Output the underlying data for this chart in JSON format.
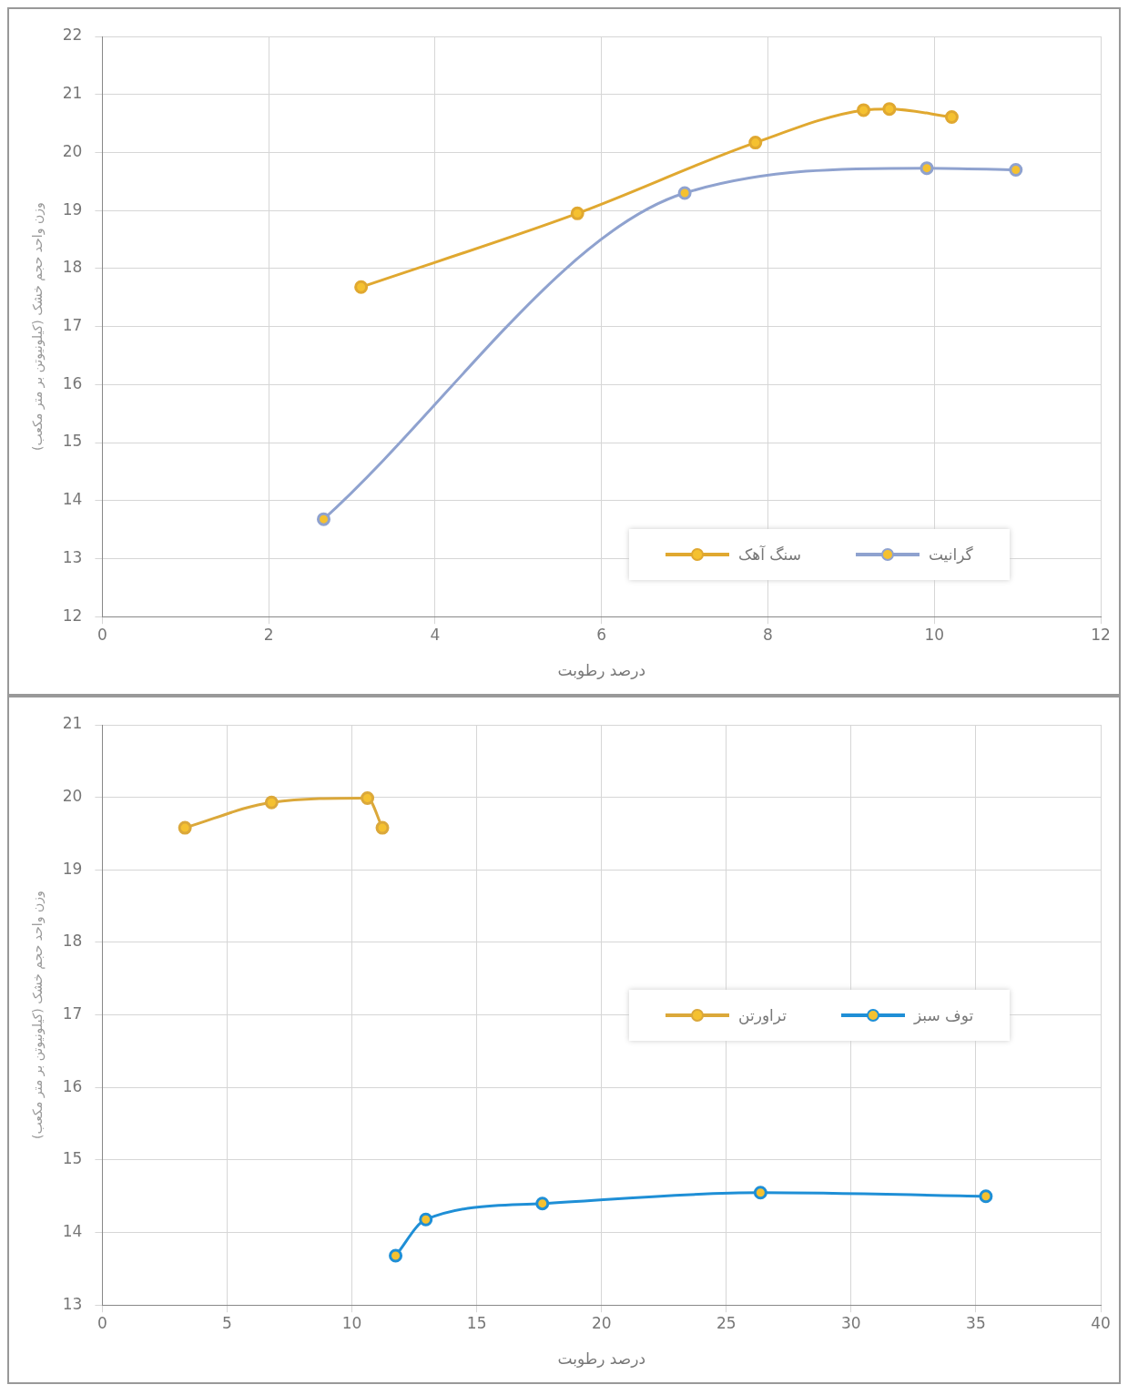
{
  "chart_data": [
    {
      "type": "line",
      "xlabel": "درصد رطوبت",
      "ylabel": "وزن واحد حجم خشک (کیلونیوتن بر متر مکعب)",
      "xlim": [
        0,
        12
      ],
      "xticks": [
        0,
        2,
        4,
        6,
        8,
        10,
        12
      ],
      "ylim": [
        12,
        22
      ],
      "yticks": [
        12,
        13,
        14,
        15,
        16,
        17,
        18,
        19,
        20,
        21,
        22
      ],
      "grid": true,
      "legend": "bottom right",
      "marker": "circle",
      "series": [
        {
          "name": "گرانیت",
          "color": "#8fa2cf",
          "x": [
            2.66,
            7.0,
            9.91,
            10.98
          ],
          "values": [
            13.68,
            19.3,
            19.73,
            19.7
          ]
        },
        {
          "name": "سنگ آهک",
          "color": "#e0a830",
          "x": [
            3.11,
            5.71,
            7.85,
            9.15,
            9.46,
            10.21
          ],
          "values": [
            17.68,
            18.95,
            20.17,
            20.73,
            20.75,
            20.61
          ]
        }
      ]
    },
    {
      "type": "line",
      "xlabel": "درصد رطوبت",
      "ylabel": "وزن واحد حجم خشک (کیلونیوتن بر متر مکعب)",
      "xlim": [
        0,
        40
      ],
      "xticks": [
        0,
        5,
        10,
        15,
        20,
        25,
        30,
        35,
        40
      ],
      "ylim": [
        13,
        21
      ],
      "yticks": [
        13,
        14,
        15,
        16,
        17,
        18,
        19,
        20,
        21
      ],
      "grid": true,
      "legend": "right",
      "marker": "circle",
      "series": [
        {
          "name": "توف سبز",
          "color": "#1f8fd6",
          "x": [
            11.75,
            12.96,
            17.63,
            26.37,
            35.4
          ],
          "values": [
            13.68,
            14.18,
            14.4,
            14.55,
            14.5
          ]
        },
        {
          "name": "تراورتن",
          "color": "#dba83a",
          "x": [
            3.31,
            6.78,
            10.62,
            11.22
          ],
          "values": [
            19.58,
            19.93,
            19.99,
            19.58
          ]
        }
      ]
    }
  ]
}
